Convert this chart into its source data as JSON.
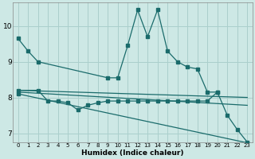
{
  "xlabel": "Humidex (Indice chaleur)",
  "bg_color": "#cde8e5",
  "grid_color": "#aacfcc",
  "line_color": "#1a6b6b",
  "xlim": [
    -0.5,
    23.5
  ],
  "ylim": [
    6.75,
    10.65
  ],
  "yticks": [
    7,
    8,
    9,
    10
  ],
  "xticks": [
    0,
    1,
    2,
    3,
    4,
    5,
    6,
    7,
    8,
    9,
    10,
    11,
    12,
    13,
    14,
    15,
    16,
    17,
    18,
    19,
    20,
    21,
    22,
    23
  ],
  "line1_x": [
    0,
    1,
    2,
    9,
    10,
    11,
    12,
    13,
    14,
    15,
    16,
    17,
    18,
    19,
    20,
    21,
    22,
    23
  ],
  "line1_y": [
    9.65,
    9.3,
    9.0,
    8.55,
    8.55,
    9.45,
    10.45,
    9.7,
    10.45,
    9.3,
    9.0,
    8.85,
    8.8,
    8.15,
    8.15,
    7.5,
    7.1,
    6.75
  ],
  "line2_x": [
    0,
    2,
    3,
    4,
    5,
    6,
    7,
    8,
    9,
    10,
    11,
    12,
    13,
    14,
    15,
    16,
    17,
    18,
    19,
    20
  ],
  "line2_y": [
    8.2,
    8.2,
    7.9,
    7.9,
    7.85,
    7.65,
    7.78,
    7.85,
    7.9,
    7.9,
    7.9,
    7.9,
    7.9,
    7.9,
    7.9,
    7.9,
    7.9,
    7.9,
    7.9,
    8.15
  ],
  "line3_x": [
    0,
    23
  ],
  "line3_y": [
    8.2,
    8.0
  ],
  "line4_x": [
    0,
    23
  ],
  "line4_y": [
    8.15,
    7.78
  ],
  "line5_x": [
    0,
    23
  ],
  "line5_y": [
    8.1,
    6.73
  ]
}
